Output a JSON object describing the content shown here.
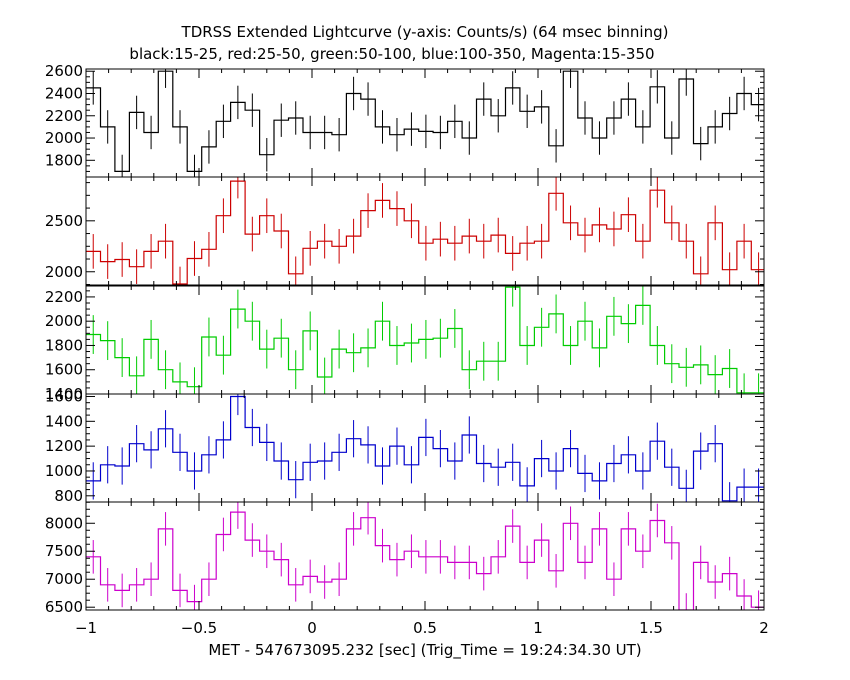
{
  "chart_data": {
    "type": "line",
    "title": "TDRSS Extended Lightcurve (y-axis: Counts/s) (64 msec binning)",
    "subtitle": "black:15-25, red:25-50, green:50-100, blue:100-350, Magenta:15-350",
    "xlabel": "MET - 547673095.232 [sec] (Trig_Time = 19:24:34.30 UT)",
    "xlim": [
      -1,
      2
    ],
    "x_ticks": [
      -1,
      -0.5,
      0,
      0.5,
      1,
      1.5,
      2
    ],
    "x_tick_labels": [
      "−1",
      "−0.5",
      "0",
      "0.5",
      "1",
      "1.5",
      "2"
    ],
    "x": [
      -0.968,
      -0.904,
      -0.84,
      -0.776,
      -0.712,
      -0.648,
      -0.584,
      -0.52,
      -0.456,
      -0.392,
      -0.328,
      -0.264,
      -0.2,
      -0.136,
      -0.072,
      -0.008,
      0.056,
      0.12,
      0.184,
      0.248,
      0.312,
      0.376,
      0.44,
      0.504,
      0.568,
      0.632,
      0.696,
      0.76,
      0.824,
      0.888,
      0.952,
      1.016,
      1.08,
      1.144,
      1.208,
      1.272,
      1.336,
      1.4,
      1.464,
      1.528,
      1.592,
      1.656,
      1.72,
      1.784,
      1.848,
      1.912,
      1.976
    ],
    "series": [
      {
        "color": "#000000",
        "ylim": [
          1650,
          2620
        ],
        "yticks": [
          1800,
          2000,
          2200,
          2400,
          2600
        ],
        "values": [
          2450,
          2100,
          1700,
          2230,
          2050,
          2600,
          2100,
          1700,
          1920,
          2150,
          2320,
          2250,
          1850,
          2160,
          2180,
          2050,
          2050,
          2030,
          2400,
          2350,
          2100,
          2030,
          2080,
          2060,
          2050,
          2150,
          2000,
          2350,
          2200,
          2450,
          2240,
          2280,
          1930,
          2600,
          2180,
          2000,
          2180,
          2350,
          2100,
          2460,
          2000,
          2530,
          1950,
          2100,
          2220,
          2400,
          2300
        ],
        "errors": [
          150,
          150,
          150,
          150,
          150,
          150,
          150,
          150,
          150,
          150,
          150,
          150,
          150,
          150,
          150,
          150,
          150,
          150,
          150,
          150,
          150,
          150,
          150,
          150,
          150,
          150,
          150,
          150,
          150,
          150,
          150,
          150,
          150,
          150,
          150,
          150,
          150,
          150,
          150,
          150,
          150,
          150,
          150,
          150,
          150,
          150,
          150
        ]
      },
      {
        "color": "#cc0000",
        "ylim": [
          1870,
          2930
        ],
        "yticks": [
          2000,
          2500
        ],
        "values": [
          2200,
          2100,
          2120,
          2050,
          2200,
          2300,
          1880,
          2130,
          2220,
          2550,
          2890,
          2370,
          2550,
          2400,
          1980,
          2230,
          2300,
          2250,
          2350,
          2600,
          2700,
          2620,
          2500,
          2280,
          2320,
          2280,
          2350,
          2300,
          2360,
          2180,
          2280,
          2300,
          2770,
          2480,
          2360,
          2460,
          2420,
          2560,
          2300,
          2800,
          2480,
          2300,
          1980,
          2480,
          2020,
          2300,
          2020
        ],
        "errors": [
          170,
          170,
          170,
          170,
          170,
          170,
          170,
          170,
          170,
          170,
          170,
          170,
          170,
          170,
          170,
          170,
          170,
          170,
          170,
          170,
          170,
          170,
          170,
          170,
          170,
          170,
          170,
          170,
          170,
          170,
          170,
          170,
          170,
          170,
          170,
          170,
          170,
          170,
          170,
          170,
          170,
          170,
          170,
          170,
          170,
          170,
          170
        ]
      },
      {
        "color": "#00cc00",
        "ylim": [
          1400,
          2290
        ],
        "yticks": [
          1400,
          1600,
          1800,
          2000,
          2200
        ],
        "values": [
          1890,
          1840,
          1700,
          1550,
          1850,
          1600,
          1500,
          1460,
          1870,
          1720,
          2100,
          2000,
          1770,
          1860,
          1600,
          1920,
          1540,
          1770,
          1740,
          1780,
          2000,
          1800,
          1820,
          1850,
          1860,
          1940,
          1600,
          1670,
          1670,
          2280,
          1800,
          1950,
          2060,
          1800,
          2000,
          1780,
          2040,
          1980,
          2130,
          1800,
          1650,
          1620,
          1640,
          1560,
          1610,
          1410,
          1410
        ],
        "errors": [
          160,
          160,
          160,
          160,
          160,
          160,
          160,
          160,
          160,
          160,
          160,
          160,
          160,
          160,
          160,
          160,
          160,
          160,
          160,
          160,
          160,
          160,
          160,
          160,
          160,
          160,
          160,
          160,
          160,
          160,
          160,
          160,
          160,
          160,
          160,
          160,
          160,
          160,
          160,
          160,
          160,
          160,
          160,
          160,
          160,
          160,
          160
        ]
      },
      {
        "color": "#0000cc",
        "ylim": [
          750,
          1620
        ],
        "yticks": [
          800,
          1000,
          1200,
          1400,
          1600
        ],
        "values": [
          920,
          1050,
          1040,
          1220,
          1170,
          1340,
          1150,
          1000,
          1130,
          1250,
          1600,
          1350,
          1230,
          1080,
          930,
          1070,
          1080,
          1150,
          1260,
          1210,
          1040,
          1200,
          1050,
          1270,
          1180,
          1080,
          1290,
          1060,
          1030,
          1070,
          880,
          1100,
          1000,
          1180,
          980,
          920,
          1060,
          1130,
          1000,
          1240,
          1030,
          860,
          1160,
          1220,
          760,
          870,
          870
        ],
        "errors": [
          150,
          150,
          150,
          150,
          150,
          150,
          150,
          150,
          150,
          150,
          150,
          150,
          150,
          150,
          150,
          150,
          150,
          150,
          150,
          150,
          150,
          150,
          150,
          150,
          150,
          150,
          150,
          150,
          150,
          150,
          150,
          150,
          150,
          150,
          150,
          150,
          150,
          150,
          150,
          150,
          150,
          150,
          150,
          150,
          150,
          150,
          150
        ]
      },
      {
        "color": "#cc00cc",
        "ylim": [
          6450,
          8380
        ],
        "yticks": [
          6500,
          7000,
          7500,
          8000
        ],
        "values": [
          7400,
          6900,
          6800,
          6900,
          7000,
          7900,
          6800,
          6600,
          7000,
          7800,
          8200,
          7700,
          7500,
          7350,
          6900,
          7050,
          6950,
          7000,
          7900,
          8100,
          7600,
          7350,
          7500,
          7400,
          7400,
          7300,
          7300,
          7100,
          7400,
          7950,
          7300,
          7700,
          7150,
          8000,
          7300,
          7900,
          7000,
          7900,
          7500,
          8050,
          7650,
          6450,
          7300,
          6950,
          7100,
          6700,
          6500
        ],
        "errors": [
          300,
          300,
          300,
          300,
          300,
          300,
          300,
          300,
          300,
          300,
          300,
          300,
          300,
          300,
          300,
          300,
          300,
          300,
          300,
          300,
          300,
          300,
          300,
          300,
          300,
          300,
          300,
          300,
          300,
          300,
          300,
          300,
          300,
          300,
          300,
          300,
          300,
          300,
          300,
          300,
          300,
          300,
          300,
          300,
          300,
          300,
          300
        ]
      }
    ]
  }
}
